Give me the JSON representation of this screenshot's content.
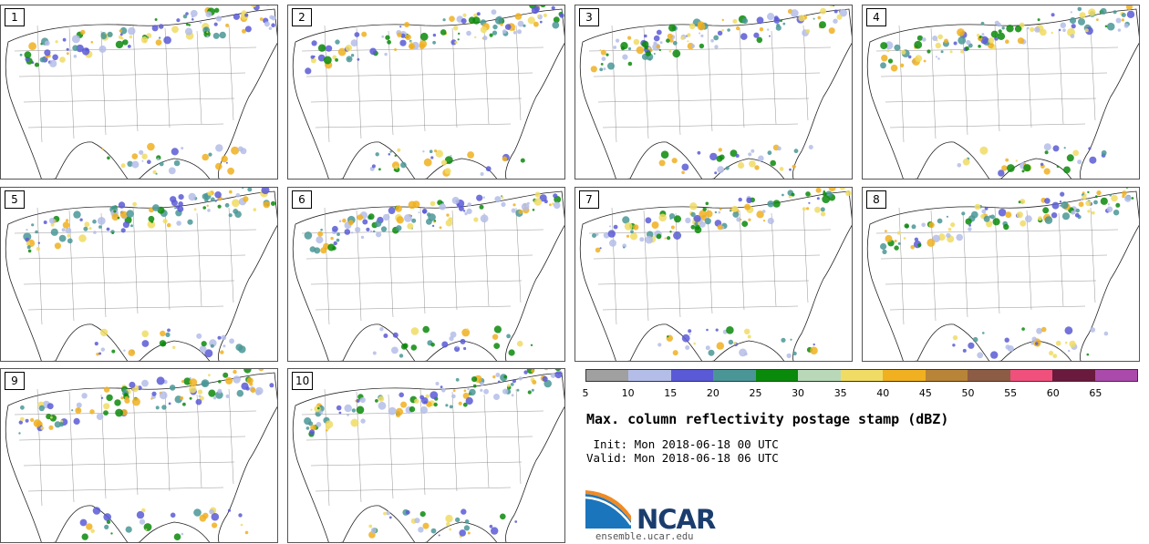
{
  "panels": [
    {
      "label": "1"
    },
    {
      "label": "2"
    },
    {
      "label": "3"
    },
    {
      "label": "4"
    },
    {
      "label": "5"
    },
    {
      "label": "6"
    },
    {
      "label": "7"
    },
    {
      "label": "8"
    },
    {
      "label": "9"
    },
    {
      "label": "10"
    }
  ],
  "colorbar": {
    "colors": [
      "#a0a0a0",
      "#b4bde8",
      "#5a5ad6",
      "#4a9696",
      "#0a8a0a",
      "#b8d8b8",
      "#f0dc64",
      "#f0b020",
      "#b88438",
      "#8c5c44",
      "#f0507c",
      "#6a1a3c",
      "#aa4aaa"
    ],
    "ticks": [
      "5",
      "10",
      "15",
      "20",
      "25",
      "30",
      "35",
      "40",
      "45",
      "50",
      "55",
      "60",
      "65"
    ]
  },
  "title": "Max. column reflectivity postage stamp (dBZ)",
  "init_line": " Init: Mon 2018-06-18 00 UTC",
  "valid_line": "Valid: Mon 2018-06-18 06 UTC",
  "logo": {
    "text": "NCAR",
    "url": "ensemble.ucar.edu"
  }
}
